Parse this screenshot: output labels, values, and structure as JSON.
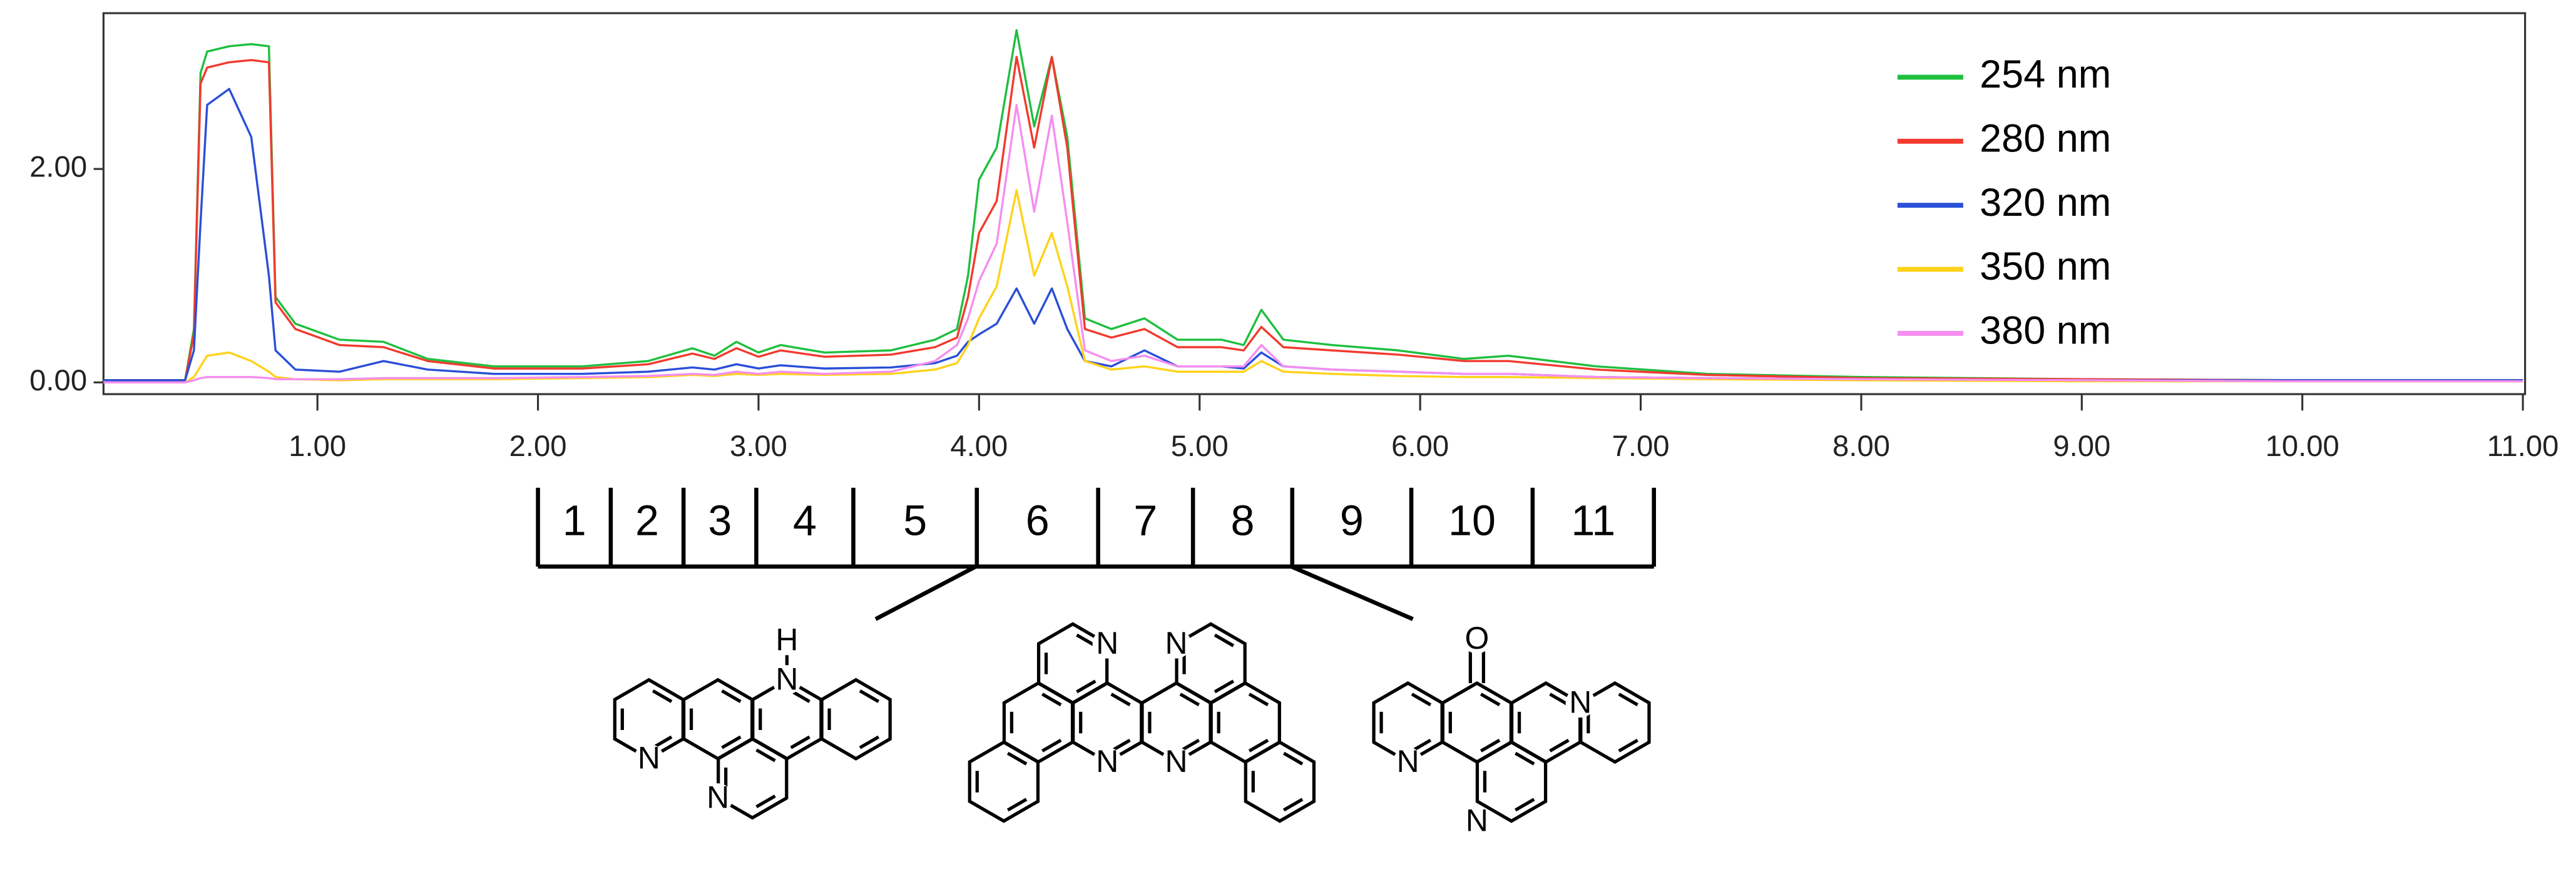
{
  "chart_data": {
    "type": "line",
    "x": [
      0.03,
      0.4,
      0.44,
      0.47,
      0.5,
      0.6,
      0.7,
      0.78,
      0.81,
      0.9,
      1.1,
      1.3,
      1.5,
      1.8,
      2.2,
      2.5,
      2.7,
      2.8,
      2.9,
      3.0,
      3.1,
      3.3,
      3.6,
      3.8,
      3.9,
      3.95,
      4.0,
      4.08,
      4.17,
      4.25,
      4.33,
      4.4,
      4.48,
      4.6,
      4.75,
      4.9,
      5.1,
      5.2,
      5.28,
      5.38,
      5.6,
      5.9,
      6.2,
      6.4,
      6.8,
      7.3,
      8.0,
      9.0,
      10.0,
      11.0
    ],
    "series": [
      {
        "name": "254 nm",
        "color": "#1fbf3f",
        "values": [
          0.02,
          0.02,
          0.5,
          2.9,
          3.1,
          3.15,
          3.17,
          3.15,
          0.8,
          0.55,
          0.4,
          0.38,
          0.22,
          0.15,
          0.15,
          0.2,
          0.32,
          0.25,
          0.38,
          0.28,
          0.35,
          0.28,
          0.3,
          0.4,
          0.5,
          1.0,
          1.9,
          2.2,
          3.3,
          2.4,
          3.05,
          2.3,
          0.6,
          0.5,
          0.6,
          0.4,
          0.4,
          0.35,
          0.68,
          0.4,
          0.35,
          0.3,
          0.22,
          0.25,
          0.15,
          0.08,
          0.05,
          0.03,
          0.02,
          0.02
        ]
      },
      {
        "name": "280 nm",
        "color": "#f23a2e",
        "values": [
          0.02,
          0.02,
          0.45,
          2.8,
          2.95,
          3.0,
          3.02,
          3.0,
          0.75,
          0.5,
          0.35,
          0.33,
          0.2,
          0.13,
          0.13,
          0.17,
          0.27,
          0.22,
          0.32,
          0.24,
          0.3,
          0.24,
          0.26,
          0.33,
          0.42,
          0.8,
          1.4,
          1.7,
          3.05,
          2.2,
          3.05,
          2.2,
          0.5,
          0.42,
          0.5,
          0.33,
          0.33,
          0.3,
          0.52,
          0.33,
          0.3,
          0.26,
          0.2,
          0.2,
          0.12,
          0.07,
          0.04,
          0.03,
          0.02,
          0.02
        ]
      },
      {
        "name": "320 nm",
        "color": "#2a4fd8",
        "values": [
          0.02,
          0.02,
          0.3,
          1.5,
          2.6,
          2.75,
          2.3,
          1.0,
          0.3,
          0.12,
          0.1,
          0.2,
          0.12,
          0.08,
          0.08,
          0.1,
          0.14,
          0.12,
          0.17,
          0.13,
          0.16,
          0.13,
          0.14,
          0.18,
          0.25,
          0.38,
          0.45,
          0.55,
          0.88,
          0.55,
          0.88,
          0.5,
          0.2,
          0.15,
          0.3,
          0.15,
          0.15,
          0.13,
          0.28,
          0.15,
          0.12,
          0.1,
          0.08,
          0.08,
          0.05,
          0.04,
          0.03,
          0.02,
          0.02,
          0.02
        ]
      },
      {
        "name": "350 nm",
        "color": "#ffd21a",
        "values": [
          0.0,
          0.0,
          0.05,
          0.15,
          0.25,
          0.28,
          0.2,
          0.1,
          0.05,
          0.03,
          0.02,
          0.03,
          0.03,
          0.03,
          0.04,
          0.05,
          0.07,
          0.06,
          0.08,
          0.07,
          0.08,
          0.07,
          0.08,
          0.12,
          0.18,
          0.35,
          0.6,
          0.9,
          1.8,
          1.0,
          1.4,
          0.9,
          0.2,
          0.12,
          0.15,
          0.1,
          0.1,
          0.1,
          0.2,
          0.1,
          0.08,
          0.06,
          0.05,
          0.05,
          0.04,
          0.03,
          0.02,
          0.01,
          0.01,
          0.01
        ]
      },
      {
        "name": "380 nm",
        "color": "#f58ef0",
        "values": [
          0.0,
          0.0,
          0.02,
          0.04,
          0.05,
          0.05,
          0.05,
          0.04,
          0.03,
          0.03,
          0.03,
          0.04,
          0.04,
          0.04,
          0.05,
          0.06,
          0.08,
          0.07,
          0.1,
          0.08,
          0.1,
          0.08,
          0.1,
          0.2,
          0.35,
          0.6,
          0.95,
          1.3,
          2.6,
          1.6,
          2.5,
          1.5,
          0.3,
          0.2,
          0.25,
          0.15,
          0.15,
          0.15,
          0.35,
          0.15,
          0.12,
          0.1,
          0.08,
          0.08,
          0.05,
          0.04,
          0.03,
          0.02,
          0.01,
          0.01
        ]
      }
    ],
    "xlim": [
      0.03,
      11.01
    ],
    "ylim": [
      -0.11,
      3.46
    ],
    "xticks": [
      {
        "value": 1,
        "label": "1.00"
      },
      {
        "value": 2,
        "label": "2.00"
      },
      {
        "value": 3,
        "label": "3.00"
      },
      {
        "value": 4,
        "label": "4.00"
      },
      {
        "value": 5,
        "label": "5.00"
      },
      {
        "value": 6,
        "label": "6.00"
      },
      {
        "value": 7,
        "label": "7.00"
      },
      {
        "value": 8,
        "label": "8.00"
      },
      {
        "value": 9,
        "label": "9.00"
      },
      {
        "value": 10,
        "label": "10.00"
      },
      {
        "value": 11,
        "label": "11.00"
      }
    ],
    "yticks": [
      {
        "value": 0,
        "label": "0.00"
      },
      {
        "value": 2,
        "label": "2.00"
      }
    ],
    "legend": "upper right",
    "fractions": {
      "edges": [
        2.0,
        2.33,
        2.66,
        2.99,
        3.43,
        3.99,
        4.54,
        4.97,
        5.42,
        5.96,
        6.51,
        7.06
      ],
      "labels": [
        "1",
        "2",
        "3",
        "4",
        "5",
        "6",
        "7",
        "8",
        "9",
        "10",
        "11"
      ]
    }
  },
  "structures": [
    {
      "atoms": [
        "H",
        "N",
        "N",
        "N"
      ]
    },
    {
      "atoms": [
        "N",
        "N",
        "N",
        "N"
      ]
    },
    {
      "atoms": [
        "O",
        "N",
        "N",
        "N"
      ]
    }
  ]
}
